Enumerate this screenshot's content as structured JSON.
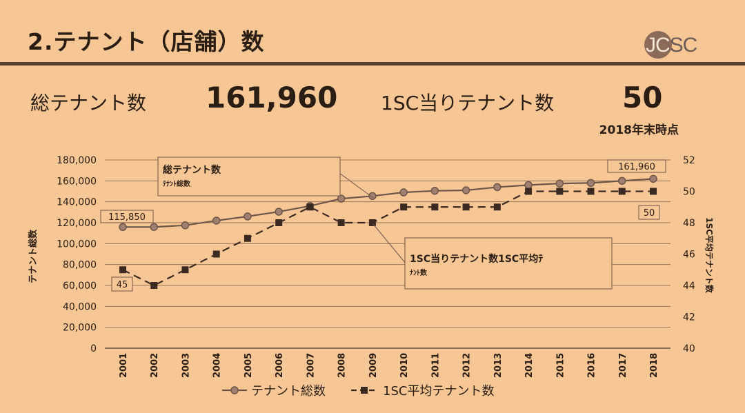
{
  "header": {
    "title": "2.テナント（店舗）数",
    "logo_text_jc": "JC",
    "logo_text_sc": "SC"
  },
  "summary": {
    "total_label": "総テナント数",
    "total_value": "161,960",
    "per_sc_label": "1SC当りテナント数",
    "per_sc_value": "50",
    "as_of": "2018年末時点"
  },
  "colors": {
    "background": "#f6c694",
    "line": "#6e5648",
    "grid": "#4a3a30"
  },
  "chart_data": {
    "type": "line",
    "x": [
      "2001",
      "2002",
      "2003",
      "2004",
      "2005",
      "2006",
      "2007",
      "2008",
      "2009",
      "2010",
      "2011",
      "2012",
      "2013",
      "2014",
      "2015",
      "2016",
      "2017",
      "2018"
    ],
    "ylabel": "テナント総数",
    "y2label": "1SC平均テナント数",
    "ylim": [
      0,
      180000
    ],
    "yticks": [
      "0",
      "20,000",
      "40,000",
      "60,000",
      "80,000",
      "100,000",
      "120,000",
      "140,000",
      "160,000",
      "180,000"
    ],
    "y2lim": [
      40,
      52
    ],
    "y2ticks": [
      "40",
      "42",
      "44",
      "46",
      "48",
      "50",
      "52"
    ],
    "grid": true,
    "legend_position": "bottom",
    "series": [
      {
        "name": "テナント総数",
        "axis": "left",
        "marker": "circle",
        "style": "solid",
        "values": [
          115850,
          115900,
          117500,
          122000,
          126000,
          130500,
          136000,
          143000,
          145500,
          149000,
          150500,
          151000,
          154000,
          156000,
          157500,
          158000,
          160000,
          161960
        ]
      },
      {
        "name": "1SC平均テナント数",
        "axis": "right",
        "marker": "square",
        "style": "dashed",
        "values": [
          45,
          44,
          45,
          46,
          47,
          48,
          49,
          48,
          48,
          49,
          49,
          49,
          49,
          50,
          50,
          50,
          50,
          50
        ]
      }
    ],
    "annotations": [
      {
        "text": "115,850"
      },
      {
        "text": "161,960"
      },
      {
        "text": "45"
      },
      {
        "text": "50"
      },
      {
        "text": "総テナント数",
        "sub": "ﾃﾅﾝﾄ総数"
      },
      {
        "text": "1SC当りテナント数1SC平均ﾃ",
        "sub": "ﾅﾝﾄ数"
      }
    ]
  }
}
